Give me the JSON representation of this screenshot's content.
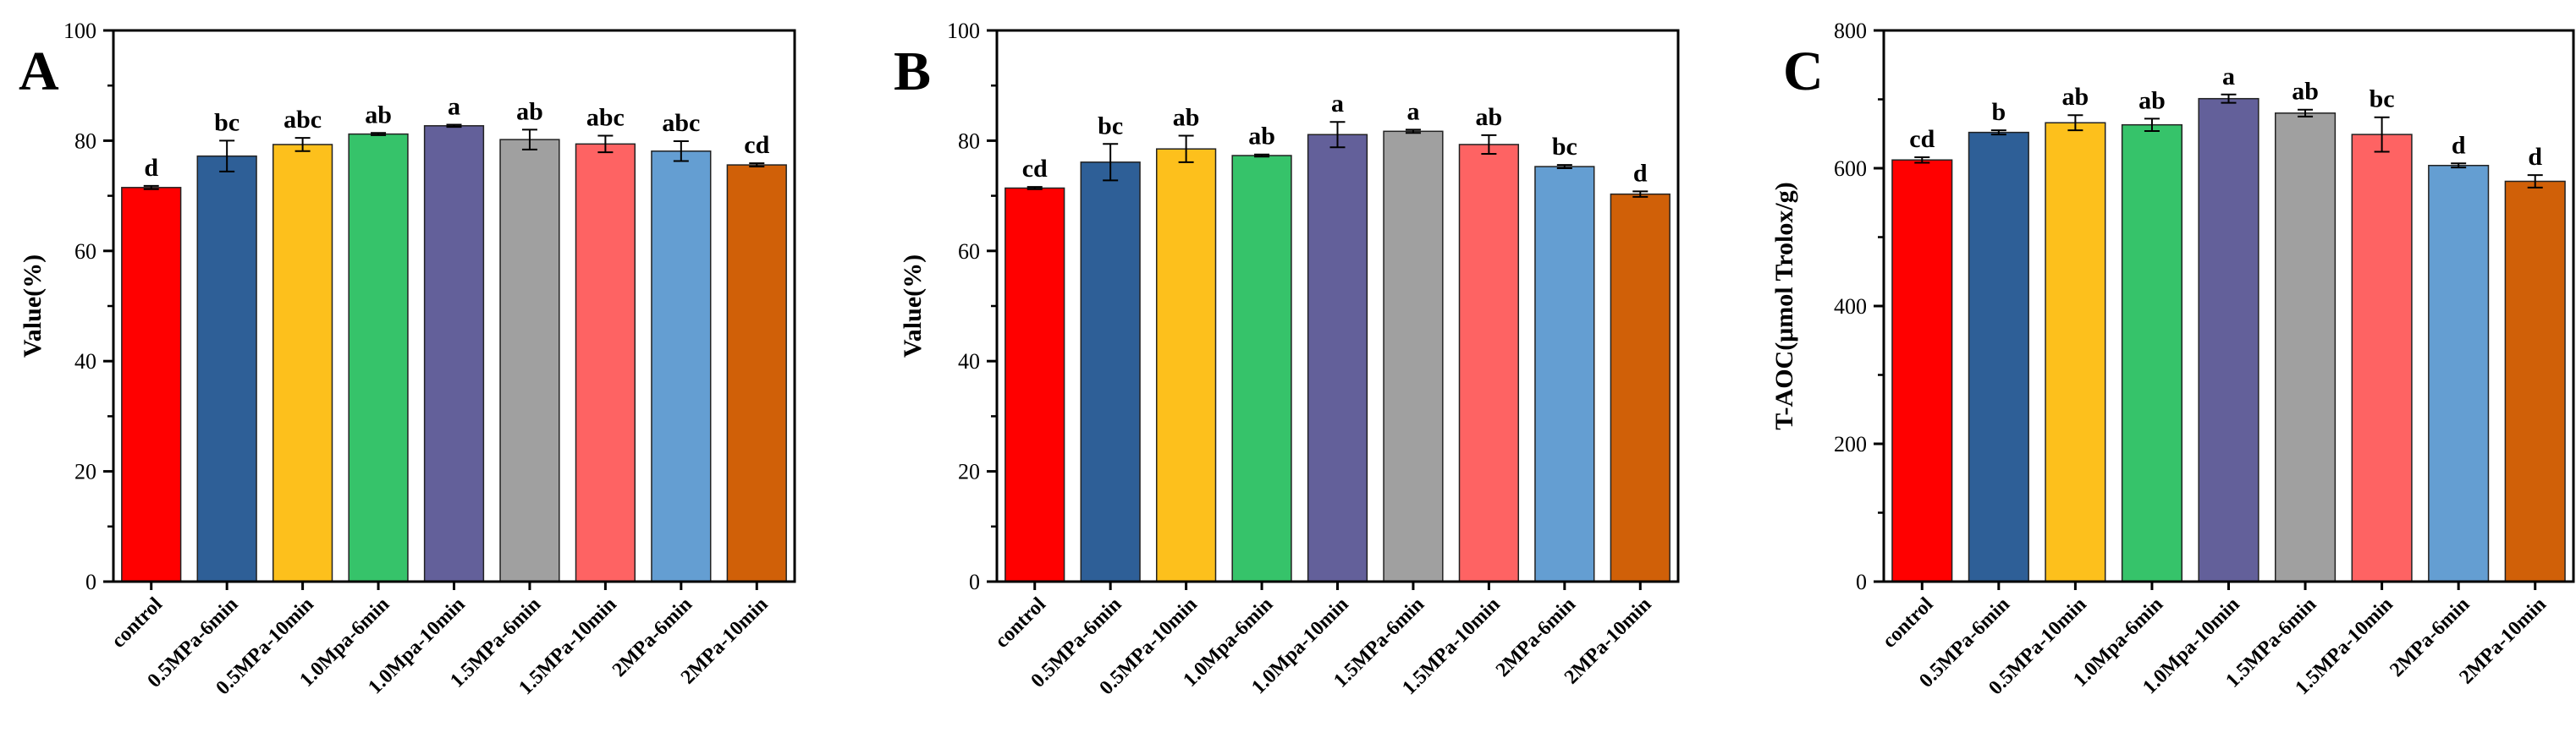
{
  "categories": [
    "control",
    "0.5MPa-6min",
    "0.5MPa-10min",
    "1.0Mpa-6min",
    "1.0Mpa-10min",
    "1.5MPa-6min",
    "1.5MPa-10min",
    "2MPa-6min",
    "2MPa-10min"
  ],
  "colors": [
    "#ff0000",
    "#2e5f97",
    "#fdc01c",
    "#36c36a",
    "#63609a",
    "#a0a0a0",
    "#fe6363",
    "#649ed2",
    "#d06008"
  ],
  "chart_data": [
    {
      "type": "bar",
      "panel_label": "A",
      "ylabel": "Value(%)",
      "ylim": [
        0,
        100
      ],
      "yticks": [
        "0",
        "20",
        "40",
        "60",
        "80",
        "100"
      ],
      "values": [
        71.5,
        77.2,
        79.3,
        81.2,
        82.7,
        80.2,
        79.4,
        78.1,
        75.6
      ],
      "errors": [
        0.3,
        2.8,
        1.2,
        0.2,
        0.2,
        1.8,
        1.5,
        1.8,
        0.3
      ],
      "letters": [
        "d",
        "bc",
        "abc",
        "ab",
        "a",
        "ab",
        "abc",
        "abc",
        "cd"
      ],
      "grid": false,
      "legend": "none"
    },
    {
      "type": "bar",
      "panel_label": "B",
      "ylabel": "Value(%)",
      "ylim": [
        0,
        100
      ],
      "yticks": [
        "0",
        "20",
        "40",
        "60",
        "80",
        "100"
      ],
      "values": [
        71.4,
        76.1,
        78.5,
        77.3,
        81.1,
        81.7,
        79.3,
        75.3,
        70.3
      ],
      "errors": [
        0.2,
        3.3,
        2.4,
        0.2,
        2.3,
        0.3,
        1.7,
        0.3,
        0.5
      ],
      "letters": [
        "cd",
        "bc",
        "ab",
        "ab",
        "a",
        "a",
        "ab",
        "bc",
        "d"
      ],
      "grid": false,
      "legend": "none"
    },
    {
      "type": "bar",
      "panel_label": "C",
      "ylabel": "T-AOC(μmol Trolox/g)",
      "ylim": [
        0,
        800
      ],
      "yticks": [
        "0",
        "200",
        "400",
        "600",
        "800"
      ],
      "values": [
        612,
        652,
        666,
        663,
        701,
        680,
        649,
        604,
        581
      ],
      "errors": [
        4,
        3,
        11,
        9,
        6,
        5,
        25,
        3,
        9
      ],
      "letters": [
        "cd",
        "b",
        "ab",
        "ab",
        "a",
        "ab",
        "bc",
        "d",
        "d"
      ],
      "grid": false,
      "legend": "none"
    }
  ]
}
